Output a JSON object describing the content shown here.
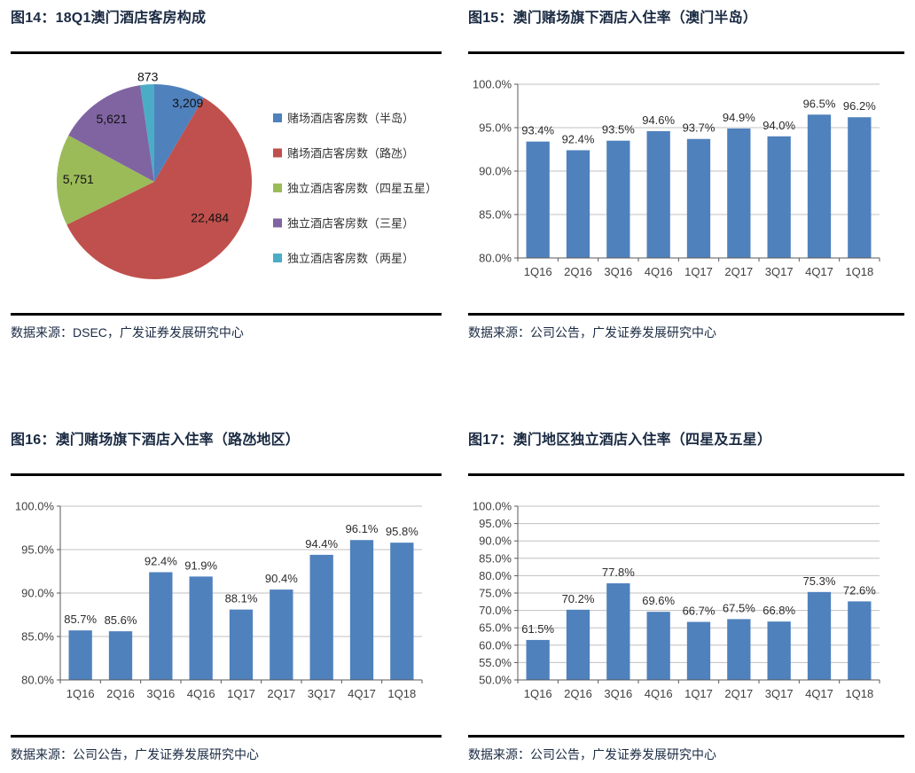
{
  "colors": {
    "title_text": "#1a2a42",
    "source_text": "#1a2a42",
    "rule": "#000000",
    "bar": "#4F81BD",
    "grid": "#c0c0c0",
    "axis": "#595959",
    "value_label": "#2b2b2b",
    "tick_text": "#3f3f3f",
    "legend_text": "#333333",
    "pie_label": "#111111"
  },
  "figures": [
    {
      "title": "图14：18Q1澳门酒店客房构成",
      "source": "数据来源：DSEC，广发证券发展研究中心"
    },
    {
      "title": "图15：澳门赌场旗下酒店入住率（澳门半岛）",
      "source": "数据来源：公司公告，广发证券发展研究中心"
    },
    {
      "title": "图16：澳门赌场旗下酒店入住率（路氹地区）",
      "source": "数据来源：公司公告，广发证券发展研究中心"
    },
    {
      "title": "图17：澳门地区独立酒店入住率（四星及五星）",
      "source": "数据来源：公司公告，广发证券发展研究中心"
    }
  ],
  "chart_data": [
    {
      "type": "pie",
      "title": "18Q1澳门酒店客房构成",
      "labels": [
        "赌场酒店客房数（半岛）",
        "赌场酒店客房数（路氹）",
        "独立酒店客房数（四星五星）",
        "独立酒店客房数（三星）",
        "独立酒店客房数（两星）"
      ],
      "values": [
        3209,
        22484,
        5751,
        5621,
        873
      ],
      "value_labels": [
        "3,209",
        "22,484",
        "5,751",
        "5,621",
        "873"
      ],
      "colors": [
        "#4F81BD",
        "#C0504D",
        "#9BBB59",
        "#8064A2",
        "#4BACC6"
      ],
      "start_angle_deg": 0,
      "direction": "clockwise",
      "legend_position": "right"
    },
    {
      "type": "bar",
      "title": "澳门赌场旗下酒店入住率（澳门半岛）",
      "categories": [
        "1Q16",
        "2Q16",
        "3Q16",
        "4Q16",
        "1Q17",
        "2Q17",
        "3Q17",
        "4Q17",
        "1Q18"
      ],
      "values": [
        93.4,
        92.4,
        93.5,
        94.6,
        93.7,
        94.9,
        94.0,
        96.5,
        96.2
      ],
      "value_labels": [
        "93.4%",
        "92.4%",
        "93.5%",
        "94.6%",
        "93.7%",
        "94.9%",
        "94.0%",
        "96.5%",
        "96.2%"
      ],
      "ylim": [
        80,
        100
      ],
      "ytick_step": 5,
      "ytick_suffix": "%",
      "bar_color": "#4F81BD",
      "grid": true,
      "legend": "none"
    },
    {
      "type": "bar",
      "title": "澳门赌场旗下酒店入住率（路氹地区）",
      "categories": [
        "1Q16",
        "2Q16",
        "3Q16",
        "4Q16",
        "1Q17",
        "2Q17",
        "3Q17",
        "4Q17",
        "1Q18"
      ],
      "values": [
        85.7,
        85.6,
        92.4,
        91.9,
        88.1,
        90.4,
        94.4,
        96.1,
        95.8
      ],
      "value_labels": [
        "85.7%",
        "85.6%",
        "92.4%",
        "91.9%",
        "88.1%",
        "90.4%",
        "94.4%",
        "96.1%",
        "95.8%"
      ],
      "ylim": [
        80,
        100
      ],
      "ytick_step": 5,
      "ytick_suffix": "%",
      "bar_color": "#4F81BD",
      "grid": true,
      "legend": "none"
    },
    {
      "type": "bar",
      "title": "澳门地区独立酒店入住率（四星及五星）",
      "categories": [
        "1Q16",
        "2Q16",
        "3Q16",
        "4Q16",
        "1Q17",
        "2Q17",
        "3Q17",
        "4Q17",
        "1Q18"
      ],
      "values": [
        61.5,
        70.2,
        77.8,
        69.6,
        66.7,
        67.5,
        66.8,
        75.3,
        72.6
      ],
      "value_labels": [
        "61.5%",
        "70.2%",
        "77.8%",
        "69.6%",
        "66.7%",
        "67.5%",
        "66.8%",
        "75.3%",
        "72.6%"
      ],
      "ylim": [
        50,
        100
      ],
      "ytick_step": 5,
      "ytick_suffix": "%",
      "bar_color": "#4F81BD",
      "grid": true,
      "legend": "none"
    }
  ]
}
